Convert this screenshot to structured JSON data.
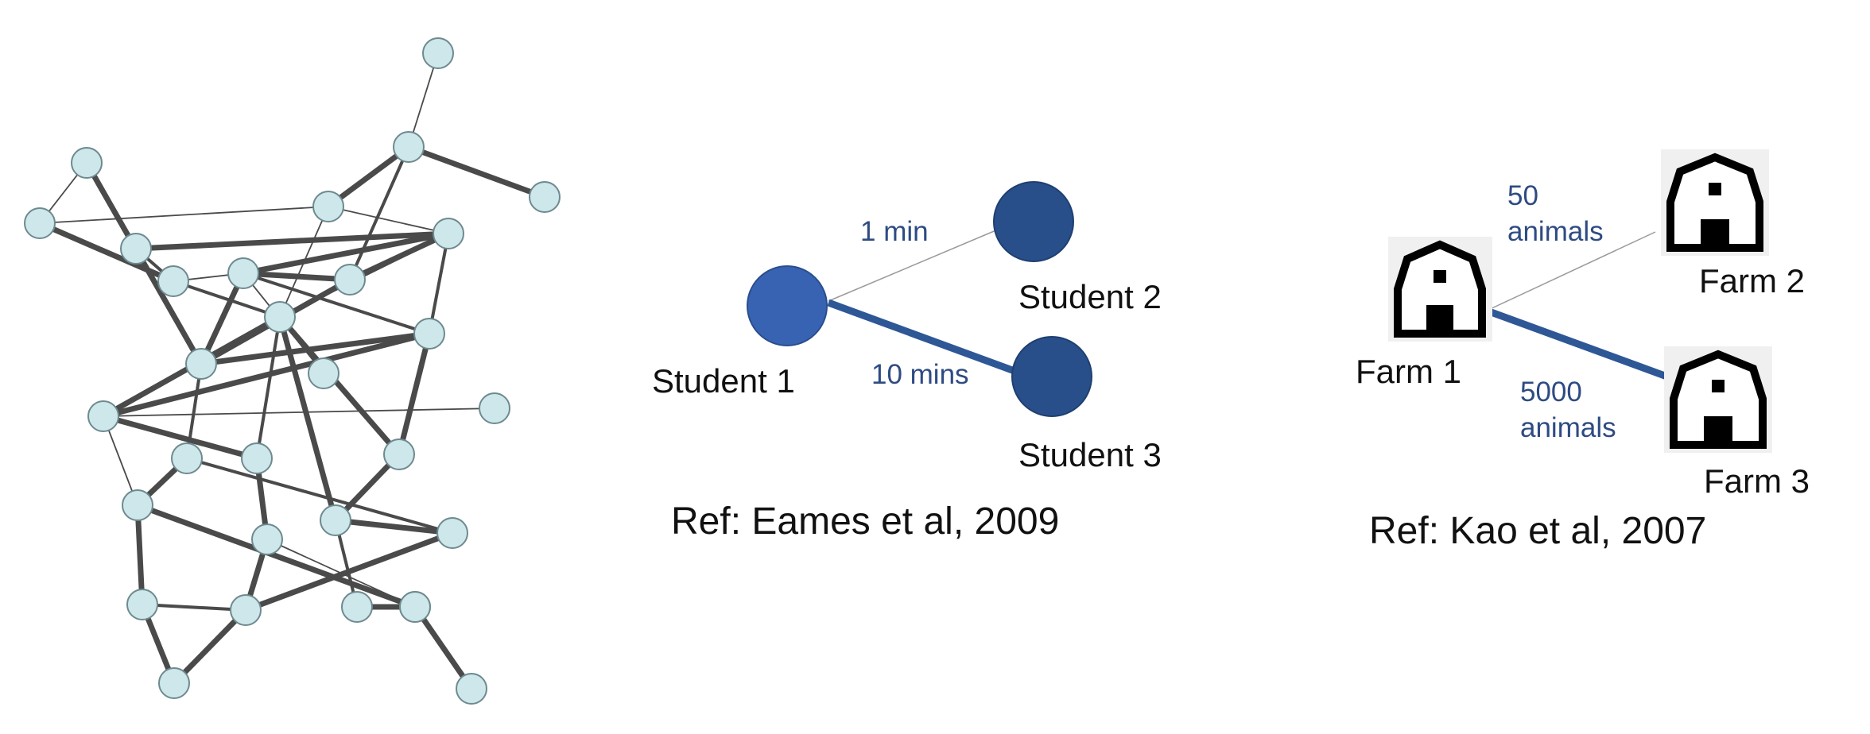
{
  "network": {
    "nodes": [
      "n1",
      "n2",
      "n3",
      "n4",
      "n5",
      "n6",
      "n7",
      "n8",
      "n9",
      "n10",
      "n11",
      "n12",
      "n13",
      "n14",
      "n15",
      "n16",
      "n17",
      "n18",
      "n19",
      "n20",
      "n21",
      "n22",
      "n23",
      "n24",
      "n25",
      "n26",
      "n27",
      "n28",
      "n29",
      "n30",
      "n31"
    ],
    "edges": [
      {
        "a": "n1",
        "b": "n2",
        "w": "thin"
      },
      {
        "a": "n2",
        "b": "n5",
        "w": "thick"
      },
      {
        "a": "n2",
        "b": "n6",
        "w": "thick"
      },
      {
        "a": "n2",
        "b": "n9",
        "w": "medium"
      },
      {
        "a": "n3",
        "b": "n4",
        "w": "thin"
      },
      {
        "a": "n3",
        "b": "n13",
        "w": "thick"
      },
      {
        "a": "n4",
        "b": "n10",
        "w": "thick"
      },
      {
        "a": "n4",
        "b": "n6",
        "w": "thin"
      },
      {
        "a": "n6",
        "b": "n8",
        "w": "thin"
      },
      {
        "a": "n6",
        "b": "n12",
        "w": "thin"
      },
      {
        "a": "n7",
        "b": "n8",
        "w": "thick"
      },
      {
        "a": "n7",
        "b": "n10",
        "w": "medium"
      },
      {
        "a": "n8",
        "b": "n11",
        "w": "thick"
      },
      {
        "a": "n8",
        "b": "n12",
        "w": "medium"
      },
      {
        "a": "n8",
        "b": "n9",
        "w": "thick"
      },
      {
        "a": "n8",
        "b": "n15",
        "w": "medium"
      },
      {
        "a": "n9",
        "b": "n11",
        "w": "thick"
      },
      {
        "a": "n9",
        "b": "n13",
        "w": "thick"
      },
      {
        "a": "n10",
        "b": "n11",
        "w": "thin"
      },
      {
        "a": "n10",
        "b": "n12",
        "w": "medium"
      },
      {
        "a": "n11",
        "b": "n13",
        "w": "thick"
      },
      {
        "a": "n11",
        "b": "n14",
        "w": "thin"
      },
      {
        "a": "n11",
        "b": "n15",
        "w": "medium"
      },
      {
        "a": "n12",
        "b": "n16",
        "w": "thick"
      },
      {
        "a": "n12",
        "b": "n18",
        "w": "thick"
      },
      {
        "a": "n12",
        "b": "n21",
        "w": "thick"
      },
      {
        "a": "n12",
        "b": "n20",
        "w": "medium"
      },
      {
        "a": "n13",
        "b": "n19",
        "w": "medium"
      },
      {
        "a": "n13",
        "b": "n15",
        "w": "thick"
      },
      {
        "a": "n15",
        "b": "n16",
        "w": "thick"
      },
      {
        "a": "n15",
        "b": "n18",
        "w": "thick"
      },
      {
        "a": "n16",
        "b": "n17",
        "w": "thin"
      },
      {
        "a": "n16",
        "b": "n20",
        "w": "thick"
      },
      {
        "a": "n16",
        "b": "n22",
        "w": "thin"
      },
      {
        "a": "n18",
        "b": "n21",
        "w": "thick"
      },
      {
        "a": "n19",
        "b": "n22",
        "w": "thick"
      },
      {
        "a": "n19",
        "b": "n24",
        "w": "medium"
      },
      {
        "a": "n20",
        "b": "n23",
        "w": "thick"
      },
      {
        "a": "n21",
        "b": "n24",
        "w": "thick"
      },
      {
        "a": "n21",
        "b": "n25",
        "w": "medium"
      },
      {
        "a": "n22",
        "b": "n27",
        "w": "thick"
      },
      {
        "a": "n22",
        "b": "n28",
        "w": "thick"
      },
      {
        "a": "n25",
        "b": "n28",
        "w": "thick"
      },
      {
        "a": "n26",
        "b": "n27",
        "w": "medium"
      },
      {
        "a": "n26",
        "b": "n29",
        "w": "thick"
      },
      {
        "a": "n27",
        "b": "n29",
        "w": "thick"
      },
      {
        "a": "n28",
        "b": "n30",
        "w": "thick"
      },
      {
        "a": "n28",
        "b": "n31",
        "w": "thin"
      },
      {
        "a": "n23",
        "b": "n26",
        "w": "thick"
      },
      {
        "a": "n23",
        "b": "n28",
        "w": "thin"
      },
      {
        "a": "n24",
        "b": "n26",
        "w": "thick"
      }
    ]
  },
  "students": {
    "student1": {
      "label": "Student 1",
      "color": "#3863B3"
    },
    "student2": {
      "label": "Student 2",
      "color": "#284F8A"
    },
    "student3": {
      "label": "Student 3",
      "color": "#284F8A"
    },
    "edge_weak": {
      "label": "1 min"
    },
    "edge_strong": {
      "label": "10 mins"
    },
    "edge_color": "#2E5796",
    "ref": "Ref: Eames et al, 2009"
  },
  "farms": {
    "farm1": {
      "label": "Farm 1"
    },
    "farm2": {
      "label": "Farm 2"
    },
    "farm3": {
      "label": "Farm 3"
    },
    "edge_weak": {
      "line1": "50",
      "line2": "animals"
    },
    "edge_strong": {
      "line1": "5000",
      "line2": "animals"
    },
    "edge_color": "#2E5796",
    "icon": "barn-icon",
    "ref": "Ref: Kao et al, 2007"
  },
  "colors": {
    "node_fill": "#CDE7EA",
    "node_stroke": "#6E8A8F",
    "edge_gray": "#4A4A4A",
    "label_blue": "#2E4B82",
    "text": "#111111"
  }
}
